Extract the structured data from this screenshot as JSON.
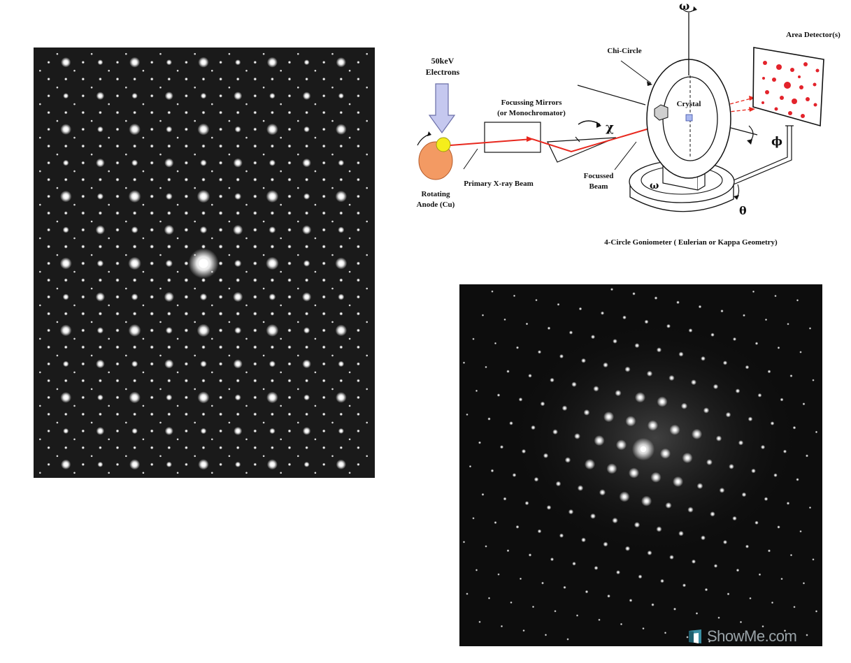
{
  "diagram": {
    "source_label_line1": "50keV",
    "source_label_line2": "Electrons",
    "mirror_label_line1": "Focussing Mirrors",
    "mirror_label_line2": "(or Monochromator)",
    "anode_label_line1": "Rotating",
    "anode_label_line2": "Anode (Cu)",
    "primary_beam_label": "Primary X-ray Beam",
    "focussed_beam_line1": "Focussed",
    "focussed_beam_line2": "Beam",
    "chi_circle_label": "Chi-Circle",
    "crystal_label": "Crystal",
    "detector_label": "Area Detector(s)",
    "goniometer_caption": "4-Circle Goniometer ( Eulerian or Kappa Geometry)",
    "symbol_omega_top": "ω",
    "symbol_omega_base": "ω",
    "symbol_chi": "χ",
    "symbol_phi": "ϕ",
    "symbol_theta": "θ",
    "colors": {
      "beam": "#e8281e",
      "anode": "#f39a63",
      "electron_spot": "#f5ee1c",
      "electron_arrow": "#c5c8ef",
      "detector_spot": "#e3232b"
    }
  },
  "watermark": {
    "text": "ShowMe.com",
    "logo_icon": "showme-logo-icon"
  }
}
